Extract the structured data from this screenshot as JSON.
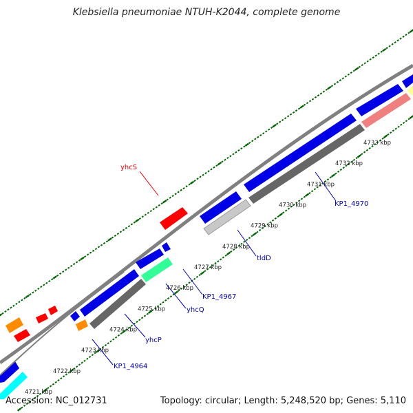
{
  "title": "Klebsiella pneumoniae NTUH-K2044, complete genome",
  "footer": {
    "accession": "Accession: NC_012731",
    "summary": "Topology: circular; Length: 5,248,520 bp; Genes: 5,110"
  },
  "colors": {
    "backbone": "#808080",
    "cds_fwd": "#0000e6",
    "rna": "#ff0000",
    "orange": "#ff8c00",
    "cyan": "#00ffff",
    "mint": "#33ff99",
    "salmon": "#f08080",
    "yellow": "#ffff99",
    "gc_dark": "#666666",
    "gc_light": "#c8c8c8",
    "tick": "#006400",
    "label_blue": "#0000b4",
    "label_red": "#e60000"
  },
  "ticks": [
    {
      "label": "4721 kbp"
    },
    {
      "label": "4722 kbp"
    },
    {
      "label": "4723 kbp"
    },
    {
      "label": "4724 kbp"
    },
    {
      "label": "4725 kbp"
    },
    {
      "label": "4726 kbp"
    },
    {
      "label": "4727 kbp"
    },
    {
      "label": "4728 kbp"
    },
    {
      "label": "4729 kbp"
    },
    {
      "label": "4730 kbp"
    },
    {
      "label": "4731 kbp"
    },
    {
      "label": "4732 kbp"
    },
    {
      "label": "4733 kbp"
    }
  ],
  "gene_labels": [
    {
      "name": "yhcS",
      "color": "label_red"
    },
    {
      "name": "KP1_4970",
      "color": "label_blue"
    },
    {
      "name": "tldD",
      "color": "label_blue"
    },
    {
      "name": "KP1_4967",
      "color": "label_blue"
    },
    {
      "name": "yhcQ",
      "color": "label_blue"
    },
    {
      "name": "yhcP",
      "color": "label_blue"
    },
    {
      "name": "KP1_4964",
      "color": "label_blue"
    }
  ]
}
